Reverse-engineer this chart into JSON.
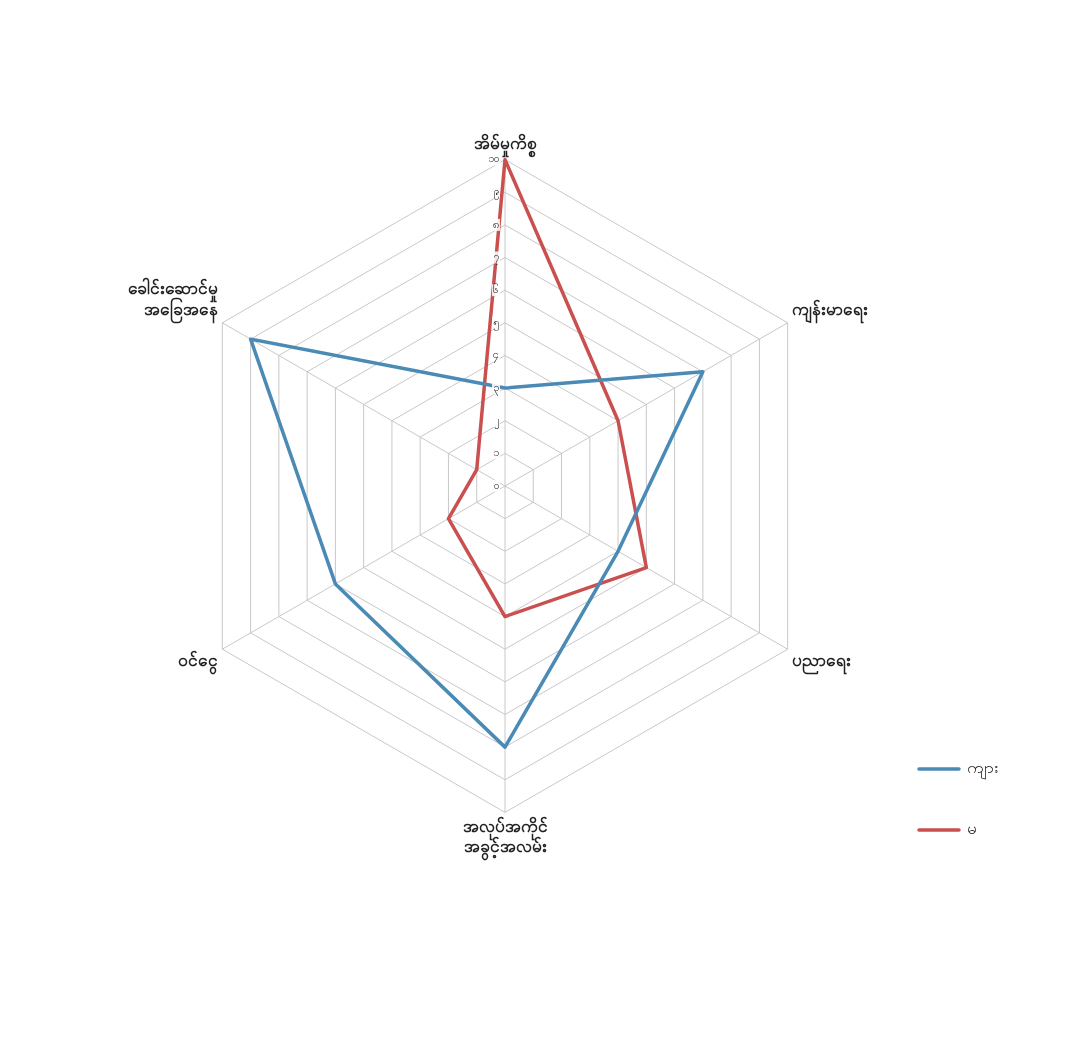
{
  "chart_data": {
    "type": "radar",
    "categories": [
      "အိမ်မှုကိစ္စ",
      "ကျန်းမာရေး",
      "ပညာရေး",
      "အလုပ်အကိုင်\nအခွင့်အလမ်း",
      "ဝင်ငွေ",
      "ခေါင်းဆောင်မှု\nအခြေအနေ"
    ],
    "series": [
      {
        "name": "ကျား",
        "color": "#4a8ab5",
        "values": [
          3,
          7,
          4,
          8,
          6,
          9
        ]
      },
      {
        "name": "မ",
        "color": "#c9504f",
        "values": [
          10,
          4,
          5,
          4,
          2,
          1
        ]
      }
    ],
    "ylim": [
      0,
      10
    ],
    "yticks": [
      {
        "value": 0,
        "label": "၀"
      },
      {
        "value": 1,
        "label": "၁"
      },
      {
        "value": 2,
        "label": "၂"
      },
      {
        "value": 3,
        "label": "၃"
      },
      {
        "value": 4,
        "label": "၄"
      },
      {
        "value": 5,
        "label": "၅"
      },
      {
        "value": 6,
        "label": "၆"
      },
      {
        "value": 7,
        "label": "၇"
      },
      {
        "value": 8,
        "label": "၈"
      },
      {
        "value": 9,
        "label": "၉"
      },
      {
        "value": 10,
        "label": "၁၀"
      }
    ],
    "grid": true,
    "legend": "bottom right",
    "marker": "none",
    "line_style": "solid"
  }
}
